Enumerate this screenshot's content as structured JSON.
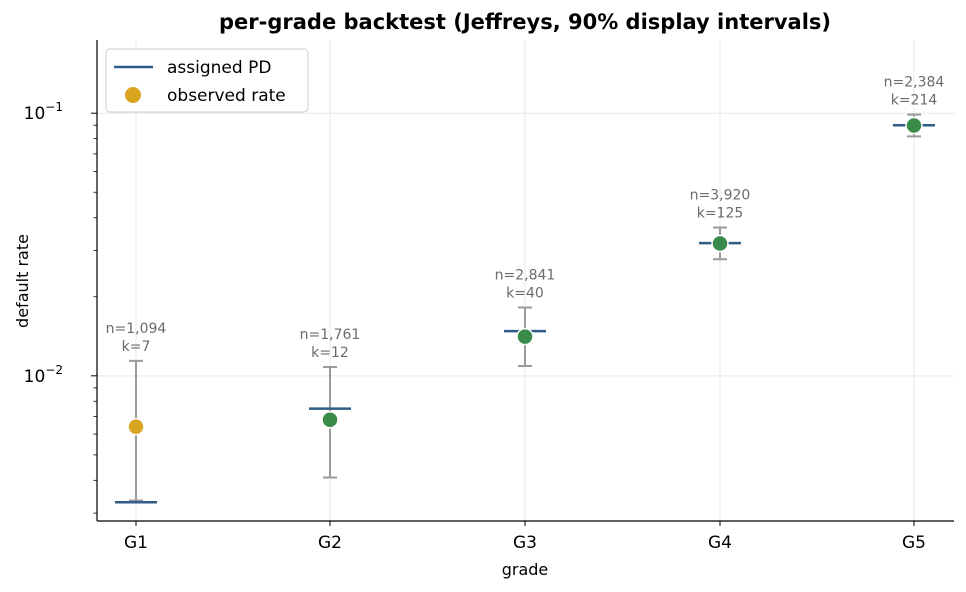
{
  "chart_data": {
    "type": "scatter",
    "title": "per-grade backtest (Jeffreys, 90% display intervals)",
    "xlabel": "grade",
    "ylabel": "default rate",
    "yscale": "log",
    "ylim": [
      0.0028,
      0.19
    ],
    "grid": true,
    "legend_position": "top-left",
    "categories": [
      "G1",
      "G2",
      "G3",
      "G4",
      "G5"
    ],
    "y_ticks": [
      {
        "value": 0.01,
        "base": "10",
        "exp": "−2"
      },
      {
        "value": 0.1,
        "base": "10",
        "exp": "−1"
      }
    ],
    "legend": [
      {
        "label": "assigned PD",
        "marker": "line",
        "color": "#2e5d87"
      },
      {
        "label": "observed rate",
        "marker": "dot",
        "color": "#d9a521"
      }
    ],
    "series": [
      {
        "name": "assigned PD",
        "values": [
          0.0033,
          0.0075,
          0.0148,
          0.032,
          0.09
        ]
      },
      {
        "name": "observed rate",
        "values": [
          0.0064,
          0.0068,
          0.0141,
          0.0319,
          0.0898
        ]
      }
    ],
    "intervals": [
      {
        "low": 0.00335,
        "high": 0.0114
      },
      {
        "low": 0.0041,
        "high": 0.0108
      },
      {
        "low": 0.0109,
        "high": 0.0182
      },
      {
        "low": 0.0278,
        "high": 0.0367
      },
      {
        "low": 0.0816,
        "high": 0.0988
      }
    ],
    "annotations": [
      {
        "n": "n=1,094",
        "k": "k=7"
      },
      {
        "n": "n=1,761",
        "k": "k=12"
      },
      {
        "n": "n=2,841",
        "k": "k=40"
      },
      {
        "n": "n=3,920",
        "k": "k=125"
      },
      {
        "n": "n=2,384",
        "k": "k=214"
      }
    ],
    "point_colors": [
      "#d9a521",
      "#3a8a4a",
      "#3a8a4a",
      "#3a8a4a",
      "#3a8a4a"
    ],
    "colors": {
      "pd_line": "#2e5d87",
      "error_bar": "#9a9a9a",
      "observed_outside": "#d9a521",
      "observed_within": "#3a8a4a",
      "annotation_text": "#6b6b6b",
      "grid": "#e8e8e8"
    }
  }
}
